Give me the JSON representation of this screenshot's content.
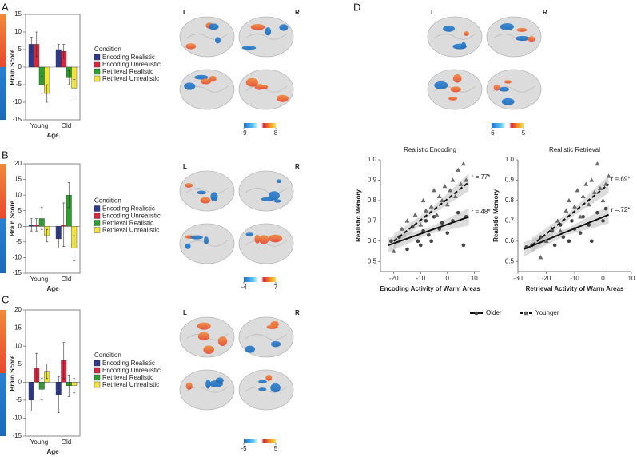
{
  "panel_labels": [
    "A",
    "B",
    "C",
    "D"
  ],
  "brain_maps": [
    {
      "hemispheres": [
        "L",
        "R"
      ],
      "colorbar_ticks": [
        -9,
        8
      ]
    },
    {
      "hemispheres": [
        "L",
        "R"
      ],
      "colorbar_ticks": [
        -4,
        7
      ]
    },
    {
      "hemispheres": [
        "L",
        "R"
      ],
      "colorbar_ticks": [
        -5,
        5
      ]
    },
    {
      "hemispheres": [
        "L",
        "R"
      ],
      "colorbar_ticks": [
        -6,
        5
      ]
    }
  ],
  "chart_data": [
    {
      "type": "bar",
      "ylabel": "Brain Score",
      "xlabel": "Age",
      "legend_title": "Condition",
      "categories": [
        "Young",
        "Old"
      ],
      "ylim": [
        -15,
        15
      ],
      "yticks": [
        -15,
        -10,
        -5,
        0,
        5,
        10,
        15
      ],
      "series": [
        {
          "name": "Encoding Realistic",
          "color": "#2e3a8c",
          "values": [
            6.5,
            5
          ],
          "errors": [
            2,
            1.5
          ]
        },
        {
          "name": "Encoding Unrealistic",
          "color": "#d7263d",
          "values": [
            6.5,
            4.5
          ],
          "errors": [
            3.5,
            2
          ]
        },
        {
          "name": "Retrieval Realistic",
          "color": "#2ca02c",
          "values": [
            -5,
            -3
          ],
          "errors": [
            2.5,
            2
          ]
        },
        {
          "name": "Retrieval Unrealistic",
          "color": "#f2e63a",
          "values": [
            -7.5,
            -6
          ],
          "errors": [
            2.5,
            2.5
          ]
        }
      ]
    },
    {
      "type": "bar",
      "ylabel": "Brain Score",
      "xlabel": "Age",
      "legend_title": "Condition",
      "categories": [
        "Young",
        "Old"
      ],
      "ylim": [
        -15,
        20
      ],
      "yticks": [
        -15,
        -10,
        -5,
        0,
        5,
        10,
        15,
        20
      ],
      "series": [
        {
          "name": "Encoding Realistic",
          "color": "#2e3a8c",
          "values": [
            0.5,
            -4
          ],
          "errors": [
            2,
            3
          ]
        },
        {
          "name": "Encoding Unrealistic",
          "color": "#d7263d",
          "values": [
            0.5,
            0.5
          ],
          "errors": [
            2,
            7
          ]
        },
        {
          "name": "Retrieval Realistic",
          "color": "#2ca02c",
          "values": [
            2.5,
            10
          ],
          "errors": [
            3.5,
            4
          ]
        },
        {
          "name": "Retrieval Unrealistic",
          "color": "#f2e63a",
          "values": [
            -3,
            -7
          ],
          "errors": [
            2,
            4
          ]
        }
      ]
    },
    {
      "type": "bar",
      "ylabel": "Brain Score",
      "xlabel": "Age",
      "legend_title": "Condition",
      "categories": [
        "Young",
        "Old"
      ],
      "ylim": [
        -15,
        20
      ],
      "yticks": [
        -15,
        -10,
        -5,
        0,
        5,
        10,
        15,
        20
      ],
      "series": [
        {
          "name": "Encoding Realistic",
          "color": "#2e3a8c",
          "values": [
            -5,
            -3.5
          ],
          "errors": [
            3,
            5
          ]
        },
        {
          "name": "Encoding Unrealistic",
          "color": "#d7263d",
          "values": [
            4,
            6
          ],
          "errors": [
            4,
            5
          ]
        },
        {
          "name": "Retrieval Realistic",
          "color": "#2ca02c",
          "values": [
            -2,
            -1
          ],
          "errors": [
            3,
            3
          ]
        },
        {
          "name": "Retrieval Unrealistic",
          "color": "#f2e63a",
          "values": [
            3,
            -1
          ],
          "errors": [
            2,
            2
          ]
        }
      ]
    },
    {
      "type": "scatter",
      "title": "Realistic Encoding",
      "xlabel": "Encoding Activity of Warm Areas",
      "ylabel": "Realistic Memory",
      "xlim": [
        -25,
        12
      ],
      "xticks": [
        -20,
        -10,
        0,
        10
      ],
      "ylim": [
        0.45,
        1.0
      ],
      "yticks": [
        0.5,
        0.6,
        0.7,
        0.8,
        0.9,
        {
          "value": 1.0,
          "label": "1.0"
        }
      ],
      "series": [
        {
          "name": "Older",
          "color": "#444444",
          "marker": "circle",
          "line_style": "solid",
          "label": "r =.48*",
          "x": [
            -21,
            -18,
            -15,
            -13,
            -11,
            -10,
            -9,
            -8,
            -7,
            -6,
            -5,
            -3,
            -2,
            0,
            2,
            4,
            6,
            7
          ],
          "values": [
            0.6,
            0.62,
            0.56,
            0.67,
            0.6,
            0.58,
            0.65,
            0.7,
            0.63,
            0.6,
            0.72,
            0.66,
            0.69,
            0.64,
            0.7,
            0.74,
            0.58,
            0.72
          ],
          "trend": {
            "x": [
              -22,
              8
            ],
            "y": [
              0.58,
              0.72
            ]
          }
        },
        {
          "name": "Younger",
          "color": "#6a6a6a",
          "marker": "triangle",
          "line_style": "dashed",
          "label": "r =.77*",
          "x": [
            -20,
            -17,
            -15,
            -12,
            -10,
            -9,
            -8,
            -6,
            -5,
            -4,
            -3,
            -2,
            -1,
            0,
            1,
            2,
            3,
            4,
            5,
            6,
            7
          ],
          "values": [
            0.55,
            0.66,
            0.7,
            0.73,
            0.68,
            0.8,
            0.75,
            0.77,
            0.85,
            0.73,
            0.82,
            0.8,
            0.87,
            0.78,
            0.85,
            0.9,
            0.82,
            0.95,
            0.88,
            0.98,
            0.9
          ],
          "trend": {
            "x": [
              -20,
              8
            ],
            "y": [
              0.6,
              0.89
            ]
          }
        }
      ]
    },
    {
      "type": "scatter",
      "title": "Realistic Retrieval",
      "xlabel": "Retrieval Activity of Warm Areas",
      "ylabel": "Realistic Memory",
      "xlim": [
        -30,
        10
      ],
      "xticks": [
        -30,
        -20,
        -10,
        0,
        10
      ],
      "ylim": [
        0.45,
        1.0
      ],
      "yticks": [
        0.5,
        0.6,
        0.7,
        0.8,
        0.9,
        {
          "value": 1.0,
          "label": "1.0"
        }
      ],
      "series": [
        {
          "name": "Older",
          "color": "#444444",
          "marker": "circle",
          "line_style": "solid",
          "label": "r =.72*",
          "x": [
            -27,
            -25,
            -22,
            -20,
            -18,
            -17,
            -15,
            -14,
            -12,
            -11,
            -10,
            -8,
            -7,
            -5,
            -4,
            -2,
            0,
            1
          ],
          "values": [
            0.57,
            0.58,
            0.62,
            0.6,
            0.65,
            0.58,
            0.68,
            0.62,
            0.6,
            0.7,
            0.66,
            0.64,
            0.72,
            0.68,
            0.6,
            0.74,
            0.7,
            0.76
          ],
          "trend": {
            "x": [
              -28,
              2
            ],
            "y": [
              0.56,
              0.73
            ]
          }
        },
        {
          "name": "Younger",
          "color": "#6a6a6a",
          "marker": "triangle",
          "line_style": "dashed",
          "label": "r =.69*",
          "x": [
            -22,
            -20,
            -18,
            -16,
            -15,
            -13,
            -12,
            -10,
            -9,
            -8,
            -7,
            -6,
            -5,
            -4,
            -3,
            -2,
            -1,
            0,
            1,
            2
          ],
          "values": [
            0.52,
            0.6,
            0.66,
            0.7,
            0.65,
            0.75,
            0.8,
            0.77,
            0.85,
            0.72,
            0.82,
            0.88,
            0.78,
            0.9,
            0.84,
            0.98,
            0.86,
            0.8,
            0.88,
            0.92
          ],
          "trend": {
            "x": [
              -25,
              2
            ],
            "y": [
              0.58,
              0.88
            ]
          }
        }
      ]
    }
  ]
}
